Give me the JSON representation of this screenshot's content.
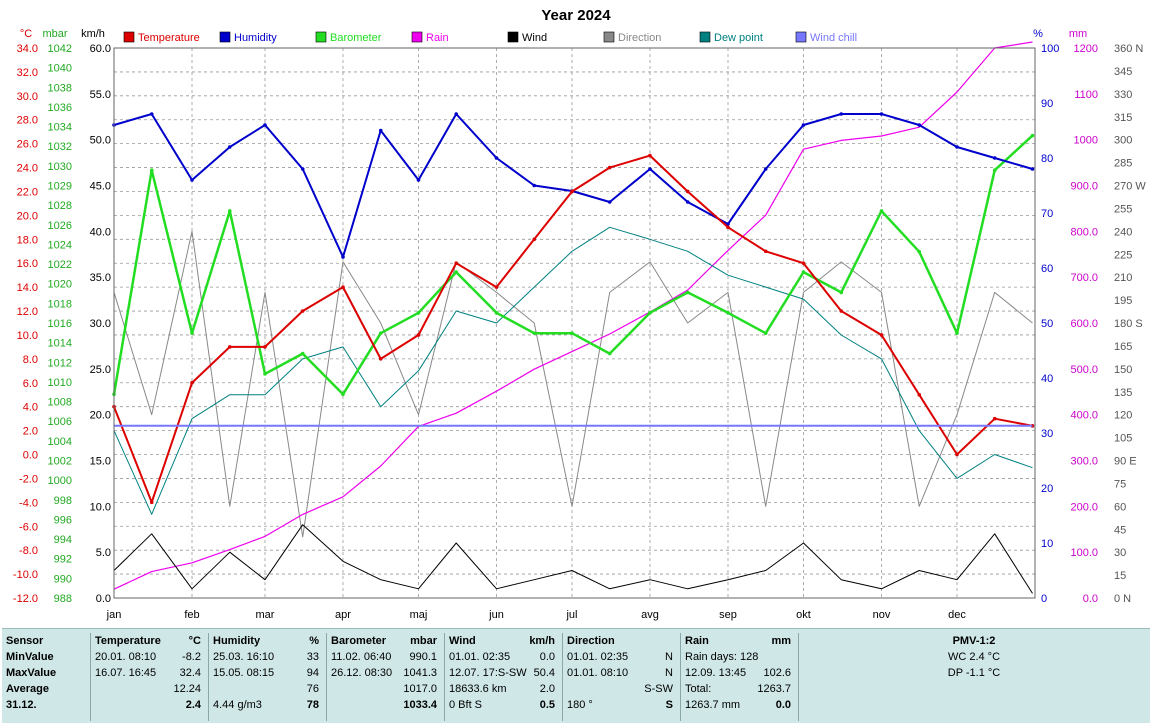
{
  "chart_data": {
    "type": "line",
    "title": "Year 2024",
    "axes": {
      "left_units": [
        "°C",
        "mbar",
        "km/h"
      ],
      "right_units": [
        "%",
        "mm"
      ],
      "temperature_ticks": [
        "34.0",
        "32.0",
        "30.0",
        "28.0",
        "26.0",
        "24.0",
        "22.0",
        "20.0",
        "18.0",
        "16.0",
        "14.0",
        "12.0",
        "10.0",
        "8.0",
        "6.0",
        "4.0",
        "2.0",
        "0.0",
        "-2.0",
        "-4.0",
        "-6.0",
        "-8.0",
        "-10.0",
        "-12.0"
      ],
      "temperature_range": [
        -12,
        34
      ],
      "pressure_ticks": [
        "1042",
        "1040",
        "1038",
        "1036",
        "1034",
        "1032",
        "1030",
        "1029",
        "1028",
        "1026",
        "1024",
        "1022",
        "1020",
        "1018",
        "1016",
        "1014",
        "1012",
        "1010",
        "1008",
        "1006",
        "1004",
        "1002",
        "1000",
        "998",
        "996",
        "994",
        "992",
        "990",
        "988"
      ],
      "pressure_range": [
        988,
        1042
      ],
      "wind_ticks": [
        "60.0",
        "55.0",
        "50.0",
        "45.0",
        "40.0",
        "35.0",
        "30.0",
        "25.0",
        "20.0",
        "15.0",
        "10.0",
        "5.0",
        "0.0"
      ],
      "wind_range": [
        0,
        60
      ],
      "humidity_ticks": [
        "100",
        "90",
        "80",
        "70",
        "60",
        "50",
        "40",
        "30",
        "20",
        "10",
        "0"
      ],
      "humidity_range": [
        0,
        100
      ],
      "rain_ticks": [
        "1200",
        "1100",
        "1000",
        "900.0",
        "800.0",
        "700.0",
        "600.0",
        "500.0",
        "400.0",
        "300.0",
        "200.0",
        "100.0",
        "0.0"
      ],
      "rain_range": [
        0,
        1250
      ],
      "direction_ticks": [
        "360 N",
        "345",
        "330",
        "315",
        "300",
        "285",
        "270 W",
        "255",
        "240",
        "225",
        "210",
        "195",
        "180 S",
        "165",
        "150",
        "135",
        "120",
        "105",
        "90 E",
        "75",
        "60",
        "45",
        "30",
        "15",
        "0 N"
      ],
      "direction_range": [
        0,
        360
      ],
      "months": [
        "jan",
        "feb",
        "mar",
        "apr",
        "maj",
        "jun",
        "jul",
        "avg",
        "sep",
        "okt",
        "nov",
        "dec"
      ]
    },
    "legend": [
      {
        "label": "Temperature",
        "color": "#dd0000"
      },
      {
        "label": "Humidity",
        "color": "#0000cc"
      },
      {
        "label": "Barometer",
        "color": "#22dd22"
      },
      {
        "label": "Rain",
        "color": "#ee00ee"
      },
      {
        "label": "Wind",
        "color": "#000000"
      },
      {
        "label": "Direction",
        "color": "#888888"
      },
      {
        "label": "Dew point",
        "color": "#008080"
      },
      {
        "label": "Wind chill",
        "color": "#7777ff"
      }
    ],
    "series": [
      {
        "name": "Temperature",
        "unit": "°C",
        "x": [
          0,
          15,
          31,
          46,
          60,
          75,
          91,
          106,
          121,
          136,
          152,
          167,
          182,
          197,
          213,
          228,
          244,
          259,
          274,
          289,
          305,
          320,
          335,
          350,
          365
        ],
        "values": [
          4,
          -4,
          6,
          9,
          9,
          12,
          14,
          8,
          10,
          16,
          14,
          18,
          22,
          24,
          25,
          22,
          19,
          17,
          16,
          12,
          10,
          5,
          0,
          3,
          2.4
        ]
      },
      {
        "name": "Humidity",
        "unit": "%",
        "x": [
          0,
          15,
          31,
          46,
          60,
          75,
          91,
          106,
          121,
          136,
          152,
          167,
          182,
          197,
          213,
          228,
          244,
          259,
          274,
          289,
          305,
          320,
          335,
          350,
          365
        ],
        "values": [
          86,
          88,
          76,
          82,
          86,
          78,
          62,
          85,
          76,
          88,
          80,
          75,
          74,
          72,
          78,
          72,
          68,
          78,
          86,
          88,
          88,
          86,
          82,
          80,
          78
        ]
      },
      {
        "name": "Barometer",
        "unit": "mbar",
        "x": [
          0,
          15,
          31,
          46,
          60,
          75,
          91,
          106,
          121,
          136,
          152,
          167,
          182,
          197,
          213,
          228,
          244,
          259,
          274,
          289,
          305,
          320,
          335,
          350,
          365
        ],
        "values": [
          1008,
          1030,
          1014,
          1026,
          1010,
          1012,
          1008,
          1014,
          1016,
          1020,
          1016,
          1014,
          1014,
          1012,
          1016,
          1018,
          1016,
          1014,
          1020,
          1018,
          1026,
          1022,
          1014,
          1030,
          1033.4
        ]
      },
      {
        "name": "Dew point",
        "unit": "°C",
        "x": [
          0,
          15,
          31,
          46,
          60,
          75,
          91,
          106,
          121,
          136,
          152,
          167,
          182,
          197,
          213,
          228,
          244,
          259,
          274,
          289,
          305,
          320,
          335,
          350,
          365
        ],
        "values": [
          2,
          -5,
          3,
          5,
          5,
          8,
          9,
          4,
          7,
          12,
          11,
          14,
          17,
          19,
          18,
          17,
          15,
          14,
          13,
          10,
          8,
          2,
          -2,
          0,
          -1.1
        ]
      },
      {
        "name": "Rain",
        "unit": "mm",
        "x": [
          0,
          15,
          31,
          46,
          60,
          75,
          91,
          106,
          121,
          136,
          152,
          167,
          182,
          197,
          213,
          228,
          244,
          259,
          274,
          289,
          305,
          320,
          335,
          350,
          365
        ],
        "values": [
          20,
          60,
          80,
          110,
          140,
          190,
          230,
          300,
          390,
          420,
          470,
          520,
          560,
          600,
          650,
          700,
          790,
          870,
          1020,
          1040,
          1050,
          1070,
          1150,
          1250,
          1263.7
        ]
      },
      {
        "name": "Wind",
        "unit": "km/h",
        "x": [
          0,
          15,
          31,
          46,
          60,
          75,
          91,
          106,
          121,
          136,
          152,
          167,
          182,
          197,
          213,
          228,
          244,
          259,
          274,
          289,
          305,
          320,
          335,
          350,
          365
        ],
        "values": [
          3,
          7,
          1,
          5,
          2,
          8,
          4,
          2,
          1,
          6,
          1,
          2,
          3,
          1,
          2,
          1,
          2,
          3,
          6,
          2,
          1,
          3,
          2,
          7,
          0.5
        ]
      },
      {
        "name": "Direction",
        "unit": "°",
        "x": [
          0,
          15,
          31,
          46,
          60,
          75,
          91,
          106,
          121,
          136,
          152,
          167,
          182,
          197,
          213,
          228,
          244,
          259,
          274,
          289,
          305,
          320,
          335,
          350,
          365
        ],
        "values": [
          200,
          120,
          240,
          60,
          200,
          40,
          220,
          180,
          120,
          220,
          200,
          180,
          60,
          200,
          220,
          180,
          200,
          60,
          200,
          220,
          200,
          60,
          120,
          200,
          180
        ]
      },
      {
        "name": "Wind chill",
        "unit": "°C",
        "x": [
          0,
          365
        ],
        "values": [
          2.4,
          2.4
        ]
      }
    ]
  },
  "stats": {
    "sensor": {
      "header": "Sensor",
      "rows": [
        "MinValue",
        "MaxValue",
        "Average",
        "31.12."
      ]
    },
    "temperature": {
      "label": "Temperature",
      "unit": "°C",
      "rows": [
        [
          "20.01.  08:10",
          "-8.2"
        ],
        [
          "16.07.  16:45",
          "32.4"
        ],
        [
          "",
          "12.24"
        ],
        [
          "",
          "2.4"
        ]
      ]
    },
    "humidity": {
      "label": "Humidity",
      "unit": "%",
      "rows": [
        [
          "25.03.  16:10",
          "33"
        ],
        [
          "15.05.  08:15",
          "94"
        ],
        [
          "",
          "76"
        ],
        [
          "4.44 g/m3",
          "78"
        ]
      ]
    },
    "barometer": {
      "label": "Barometer",
      "unit": "mbar",
      "rows": [
        [
          "11.02.  06:40",
          "990.1"
        ],
        [
          "26.12.  08:30",
          "1041.3"
        ],
        [
          "",
          "1017.0"
        ],
        [
          "",
          "1033.4"
        ]
      ]
    },
    "wind": {
      "label": "Wind",
      "unit": "km/h",
      "rows": [
        [
          "01.01.  02:35",
          "0.0"
        ],
        [
          "12.07.  17:S-SW",
          "50.4"
        ],
        [
          "18633.6 km",
          "2.0"
        ],
        [
          "0 Bft S",
          "0.5"
        ]
      ]
    },
    "direction": {
      "label": "Direction",
      "unit": "",
      "rows": [
        [
          "01.01.  02:35",
          "N"
        ],
        [
          "01.01.  08:10",
          "N"
        ],
        [
          "",
          "S-SW"
        ],
        [
          "180 °",
          "S"
        ]
      ]
    },
    "rain": {
      "label": "Rain",
      "unit": "mm",
      "rows": [
        [
          "Rain days: 128",
          ""
        ],
        [
          "12.09.  13:45",
          "102.6"
        ],
        [
          "Total:",
          "1263.7"
        ],
        [
          "1263.7 mm",
          "0.0"
        ]
      ]
    },
    "pmv": {
      "label": "PMV-1:2",
      "rows": [
        "WC 2.4 °C",
        "DP -1.1 °C"
      ]
    }
  }
}
